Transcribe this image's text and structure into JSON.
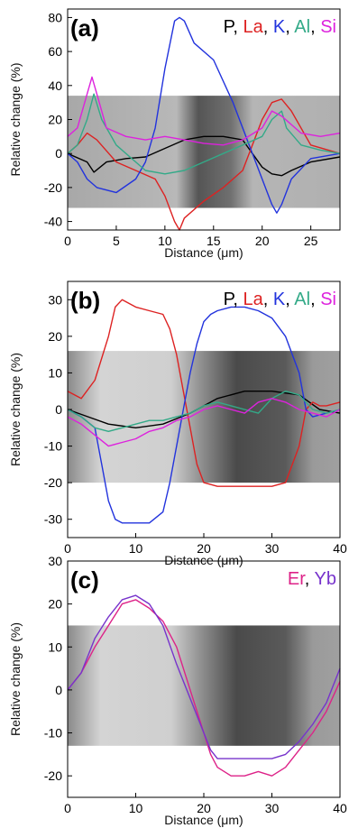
{
  "chart_data": [
    {
      "type": "line",
      "panel": "(a)",
      "xlabel": "Distance (μm)",
      "ylabel": "Relative change (%)",
      "xlim": [
        0,
        28
      ],
      "ylim": [
        -45,
        85
      ],
      "xticks": [
        "0",
        "5",
        "10",
        "15",
        "20",
        "25"
      ],
      "yticks": [
        "-40",
        "-20",
        "0",
        "20",
        "40",
        "60",
        "80"
      ],
      "xtick_values": [
        0,
        5,
        10,
        15,
        20,
        25
      ],
      "ytick_values": [
        -40,
        -20,
        0,
        20,
        40,
        60,
        80
      ],
      "image_band": [
        -32,
        34
      ],
      "legend_placement": "top-right",
      "series": [
        {
          "name": "P",
          "color": "#000000",
          "x": [
            0,
            2,
            2.7,
            4,
            6,
            8,
            10,
            12,
            14,
            16,
            18,
            19,
            20,
            21,
            22,
            23,
            25,
            28
          ],
          "values": [
            0,
            -5,
            -11,
            -5,
            -3,
            -2,
            3,
            8,
            10,
            10,
            8,
            0,
            -8,
            -12,
            -13,
            -10,
            -5,
            -2
          ]
        },
        {
          "name": "La",
          "color": "#dd2222",
          "x": [
            0,
            1,
            2,
            3,
            5,
            7,
            9,
            10,
            11,
            11.5,
            12,
            14,
            16,
            18,
            19,
            20,
            21,
            22,
            23,
            25,
            28
          ],
          "values": [
            0,
            5,
            12,
            8,
            -5,
            -10,
            -15,
            -25,
            -40,
            -45,
            -38,
            -28,
            -20,
            -10,
            5,
            20,
            30,
            32,
            25,
            5,
            0
          ]
        },
        {
          "name": "K",
          "color": "#2233dd",
          "x": [
            0,
            1,
            2,
            3,
            5,
            7,
            8,
            9,
            10,
            11,
            11.5,
            12,
            13,
            15,
            17,
            18,
            19,
            20,
            21,
            21.5,
            22,
            23,
            25,
            28
          ],
          "values": [
            0,
            -5,
            -15,
            -20,
            -23,
            -15,
            -5,
            15,
            50,
            78,
            80,
            78,
            65,
            55,
            30,
            15,
            0,
            -15,
            -30,
            -35,
            -30,
            -15,
            -3,
            0
          ]
        },
        {
          "name": "Al",
          "color": "#33aa88",
          "x": [
            0,
            1,
            2,
            2.7,
            3.5,
            5,
            8,
            10,
            12,
            14,
            16,
            18,
            20,
            21,
            22,
            22.5,
            24,
            26,
            28
          ],
          "values": [
            0,
            5,
            20,
            35,
            20,
            5,
            -10,
            -12,
            -10,
            -5,
            0,
            5,
            10,
            20,
            25,
            15,
            5,
            2,
            0
          ]
        },
        {
          "name": "Si",
          "color": "#dd22dd",
          "x": [
            0,
            1,
            2,
            2.5,
            3,
            4,
            6,
            8,
            10,
            12,
            14,
            16,
            18,
            20,
            21,
            22,
            24,
            26,
            28
          ],
          "values": [
            10,
            15,
            35,
            45,
            35,
            15,
            10,
            8,
            10,
            8,
            6,
            5,
            8,
            15,
            25,
            22,
            12,
            10,
            12
          ]
        }
      ]
    },
    {
      "type": "line",
      "panel": "(b)",
      "xlabel": "Distance (μm)",
      "ylabel": "Relative change (%)",
      "xlim": [
        0,
        40
      ],
      "ylim": [
        -35,
        35
      ],
      "xticks": [
        "0",
        "10",
        "20",
        "30",
        "40"
      ],
      "yticks": [
        "-30",
        "-20",
        "-10",
        "0",
        "10",
        "20",
        "30"
      ],
      "xtick_values": [
        0,
        10,
        20,
        30,
        40
      ],
      "ytick_values": [
        -30,
        -20,
        -10,
        0,
        10,
        20,
        30
      ],
      "image_band": [
        -20,
        16
      ],
      "legend_placement": "top-right",
      "series": [
        {
          "name": "P",
          "color": "#000000",
          "x": [
            0,
            3,
            6,
            10,
            14,
            18,
            22,
            26,
            30,
            34,
            37,
            40
          ],
          "values": [
            0,
            -2,
            -4,
            -5,
            -4,
            -1,
            3,
            5,
            5,
            4,
            0,
            -1
          ]
        },
        {
          "name": "La",
          "color": "#dd2222",
          "x": [
            0,
            2,
            4,
            6,
            7,
            8,
            10,
            12,
            14,
            15,
            16,
            17,
            18,
            19,
            20,
            22,
            24,
            26,
            28,
            30,
            32,
            34,
            35,
            36,
            37,
            38,
            40
          ],
          "values": [
            5,
            3,
            8,
            20,
            28,
            30,
            28,
            27,
            26,
            22,
            15,
            5,
            -5,
            -15,
            -20,
            -21,
            -21,
            -21,
            -21,
            -21,
            -20,
            -10,
            0,
            2,
            1,
            1,
            2
          ]
        },
        {
          "name": "K",
          "color": "#2233dd",
          "x": [
            0,
            2,
            4,
            5,
            6,
            7,
            8,
            10,
            12,
            14,
            15,
            16,
            17,
            18,
            19,
            20,
            21,
            22,
            24,
            26,
            28,
            30,
            32,
            34,
            35,
            36,
            38,
            40
          ],
          "values": [
            0,
            -2,
            -5,
            -15,
            -25,
            -30,
            -31,
            -31,
            -31,
            -28,
            -20,
            -10,
            0,
            10,
            18,
            24,
            26,
            27,
            28,
            28,
            27,
            25,
            20,
            10,
            0,
            -2,
            -1,
            0
          ]
        },
        {
          "name": "Al",
          "color": "#33aa88",
          "x": [
            0,
            2,
            4,
            6,
            8,
            10,
            12,
            14,
            16,
            18,
            20,
            22,
            24,
            26,
            28,
            30,
            32,
            34,
            36,
            38,
            40
          ],
          "values": [
            0,
            -2,
            -5,
            -6,
            -5,
            -4,
            -3,
            -3,
            -2,
            -1,
            1,
            2,
            1,
            0,
            -1,
            3,
            5,
            4,
            0,
            -1,
            0
          ]
        },
        {
          "name": "Si",
          "color": "#dd22dd",
          "x": [
            0,
            2,
            4,
            6,
            8,
            10,
            12,
            14,
            16,
            18,
            20,
            22,
            24,
            26,
            28,
            30,
            32,
            34,
            36,
            38,
            40
          ],
          "values": [
            -2,
            -4,
            -7,
            -10,
            -9,
            -8,
            -6,
            -5,
            -3,
            -2,
            0,
            1,
            0,
            -1,
            2,
            3,
            2,
            0,
            -1,
            -2,
            0
          ]
        }
      ]
    },
    {
      "type": "line",
      "panel": "(c)",
      "xlabel": "Distance (μm)",
      "ylabel": "Relative change (%)",
      "xlim": [
        0,
        40
      ],
      "ylim": [
        -25,
        30
      ],
      "xticks": [
        "0",
        "10",
        "20",
        "30",
        "40"
      ],
      "yticks": [
        "-20",
        "-10",
        "0",
        "10",
        "20",
        "30"
      ],
      "xtick_values": [
        0,
        10,
        20,
        30,
        40
      ],
      "ytick_values": [
        -20,
        -10,
        0,
        10,
        20,
        30
      ],
      "image_band": [
        -13,
        15
      ],
      "legend_placement": "top-right",
      "series": [
        {
          "name": "Er",
          "color": "#dd2288",
          "x": [
            0,
            2,
            4,
            6,
            8,
            10,
            12,
            14,
            16,
            18,
            20,
            21,
            22,
            24,
            26,
            28,
            30,
            32,
            34,
            36,
            38,
            40
          ],
          "values": [
            0,
            4,
            10,
            15,
            20,
            21,
            19,
            16,
            10,
            0,
            -10,
            -15,
            -18,
            -20,
            -20,
            -19,
            -20,
            -18,
            -14,
            -10,
            -5,
            2
          ]
        },
        {
          "name": "Yb",
          "color": "#7733cc",
          "x": [
            0,
            2,
            4,
            6,
            8,
            10,
            12,
            14,
            16,
            18,
            20,
            21,
            22,
            24,
            26,
            28,
            30,
            32,
            34,
            36,
            38,
            40
          ],
          "values": [
            0,
            4,
            12,
            17,
            21,
            22,
            20,
            15,
            6,
            -2,
            -10,
            -14,
            -16,
            -16,
            -16,
            -16,
            -16,
            -15,
            -12,
            -8,
            -3,
            5
          ]
        }
      ]
    }
  ]
}
